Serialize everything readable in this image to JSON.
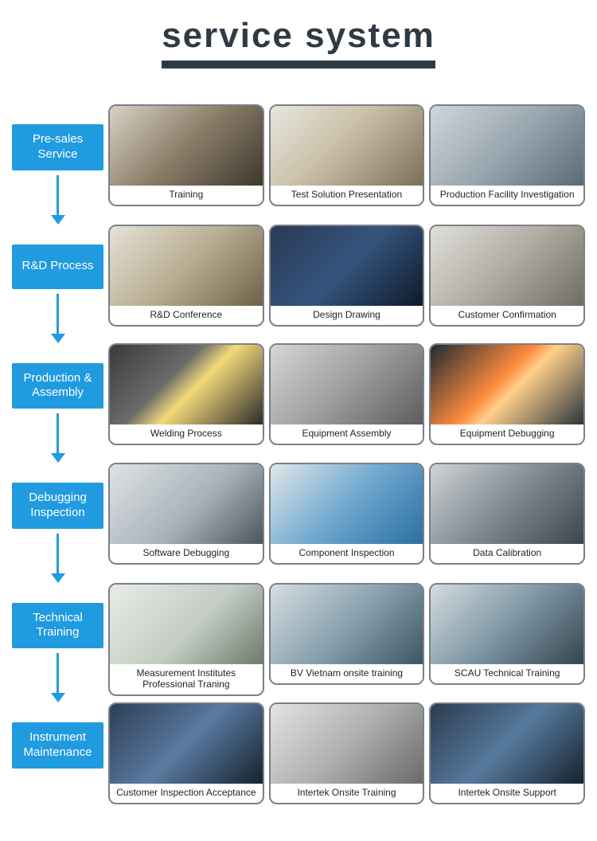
{
  "page": {
    "title": "service system",
    "accent_color": "#209be0",
    "title_color": "#2f3a44",
    "card_border_color": "#7a8086",
    "background_color": "#ffffff"
  },
  "stages": [
    {
      "label": "Pre-sales Service"
    },
    {
      "label": "R&D Process"
    },
    {
      "label": "Production & Assembly"
    },
    {
      "label": "Debugging Inspection"
    },
    {
      "label": "Technical Training"
    },
    {
      "label": "Instrument Maintenance"
    }
  ],
  "cards": [
    [
      {
        "caption": "Training",
        "ph": "ph-a"
      },
      {
        "caption": "Test Solution Presentation",
        "ph": "ph-b"
      },
      {
        "caption": "Production Facility Investigation",
        "ph": "ph-c"
      }
    ],
    [
      {
        "caption": "R&D Conference",
        "ph": "ph-d"
      },
      {
        "caption": "Design Drawing",
        "ph": "ph-e"
      },
      {
        "caption": "Customer Confirmation",
        "ph": "ph-f"
      }
    ],
    [
      {
        "caption": "Welding Process",
        "ph": "ph-g"
      },
      {
        "caption": "Equipment Assembly",
        "ph": "ph-h"
      },
      {
        "caption": "Equipment Debugging",
        "ph": "ph-i"
      }
    ],
    [
      {
        "caption": "Software Debugging",
        "ph": "ph-j"
      },
      {
        "caption": "Component Inspection",
        "ph": "ph-k"
      },
      {
        "caption": "Data Calibration",
        "ph": "ph-l"
      }
    ],
    [
      {
        "caption": "Measurement Institutes Professional Traning",
        "ph": "ph-m",
        "two_line": true
      },
      {
        "caption": "BV Vietnam onsite training",
        "ph": "ph-n"
      },
      {
        "caption": "SCAU Technical Training",
        "ph": "ph-o"
      }
    ],
    [
      {
        "caption": "Customer Inspection Acceptance",
        "ph": "ph-p"
      },
      {
        "caption": "Intertek Onsite Training",
        "ph": "ph-q"
      },
      {
        "caption": "Intertek Onsite Support",
        "ph": "ph-r"
      }
    ]
  ]
}
